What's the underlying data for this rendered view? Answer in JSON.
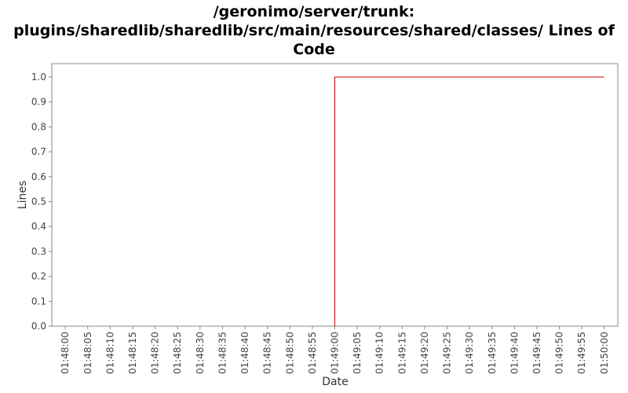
{
  "chart_data": {
    "type": "line",
    "title_lines": [
      "/geronimo/server/trunk:",
      "plugins/sharedlib/sharedlib/src/main/resources/shared/classes/ Lines of",
      "Code"
    ],
    "xlabel": "Date",
    "ylabel": "Lines",
    "x_ticks": [
      "01:48:00",
      "01:48:05",
      "01:48:10",
      "01:48:15",
      "01:48:20",
      "01:48:25",
      "01:48:30",
      "01:48:35",
      "01:48:40",
      "01:48:45",
      "01:48:50",
      "01:48:55",
      "01:49:00",
      "01:49:05",
      "01:49:10",
      "01:49:15",
      "01:49:20",
      "01:49:25",
      "01:49:30",
      "01:49:35",
      "01:49:40",
      "01:49:45",
      "01:49:50",
      "01:49:55",
      "01:50:00"
    ],
    "y_ticks": [
      "0.0",
      "0.1",
      "0.2",
      "0.3",
      "0.4",
      "0.5",
      "0.6",
      "0.7",
      "0.8",
      "0.9",
      "1.0"
    ],
    "ylim": [
      0,
      1.0
    ],
    "xlim": [
      "01:47:57",
      "01:50:03"
    ],
    "series": [
      {
        "color": "#cc0000",
        "step": true,
        "points": [
          {
            "x": "01:49:00",
            "y": 0
          },
          {
            "x": "01:49:00",
            "y": 1
          },
          {
            "x": "01:50:00",
            "y": 1
          }
        ]
      }
    ],
    "grid": false,
    "legend": "none"
  }
}
